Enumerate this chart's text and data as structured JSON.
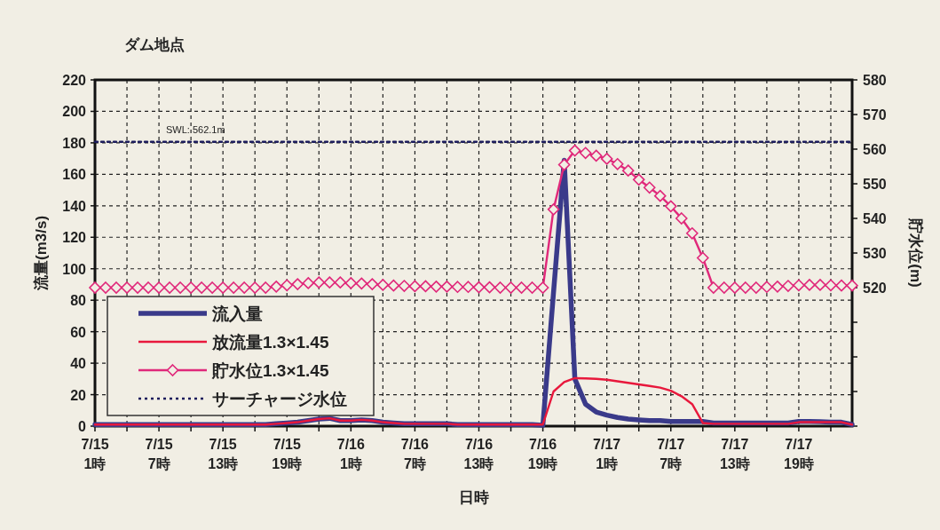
{
  "chart_data": {
    "type": "line",
    "title": "ダム地点",
    "xlabel": "日時",
    "ylabel": "流量(m3/s)",
    "y2label": "貯水位(m)",
    "categories": [
      "7/15\n1時",
      null,
      null,
      null,
      null,
      null,
      "7/15\n7時",
      null,
      null,
      null,
      null,
      null,
      "7/15\n13時",
      null,
      null,
      null,
      null,
      null,
      "7/15\n19時",
      null,
      null,
      null,
      null,
      null,
      "7/16\n1時",
      null,
      null,
      null,
      null,
      null,
      "7/16\n7時",
      null,
      null,
      null,
      null,
      null,
      "7/16\n13時",
      null,
      null,
      null,
      null,
      null,
      "7/16\n19時",
      null,
      null,
      null,
      null,
      null,
      "7/17\n1時",
      null,
      null,
      null,
      null,
      null,
      "7/17\n7時",
      null,
      null,
      null,
      null,
      null,
      "7/17\n13時",
      null,
      null,
      null,
      null,
      null,
      "7/17\n19時",
      null,
      null,
      null,
      null,
      null
    ],
    "ylim": [
      0,
      220
    ],
    "yticks": [
      0,
      20,
      40,
      60,
      80,
      100,
      120,
      140,
      160,
      180,
      200,
      220
    ],
    "y2lim": [
      480,
      580
    ],
    "y2ticks": [
      {
        "value": 480,
        "label": null
      },
      {
        "value": 490,
        "label": null
      },
      {
        "value": 500,
        "label": null
      },
      {
        "value": 510,
        "label": null
      },
      520,
      530,
      540,
      550,
      560,
      570,
      580
    ],
    "grid": true,
    "legend": "bottom left",
    "series": [
      {
        "name": "流入量",
        "color": "#3a3a8a",
        "values": [
          1,
          1,
          1,
          1,
          1,
          1,
          1,
          1,
          1,
          1,
          1,
          1,
          1,
          1,
          1,
          1,
          1,
          1.5,
          2,
          2.5,
          3.5,
          4.5,
          5,
          3.5,
          3.5,
          4,
          3.5,
          2.5,
          2,
          1.5,
          1.5,
          1.5,
          1.5,
          1.5,
          1,
          1,
          1,
          1,
          1,
          1,
          1,
          1,
          0.5,
          85,
          169,
          30,
          14,
          9,
          7,
          5.5,
          4.5,
          4,
          3.5,
          3.5,
          3,
          3,
          3,
          3,
          2,
          2,
          2,
          2,
          2,
          2,
          2,
          2,
          3,
          3,
          2.8,
          2.5,
          2.5,
          1
        ]
      },
      {
        "name": "放流量1.3×1.45",
        "color": "#e8183c",
        "values": [
          1,
          1,
          1,
          1,
          1,
          1,
          1,
          1,
          1,
          1,
          1,
          1,
          1,
          1,
          1,
          1,
          1,
          1.5,
          2,
          2.5,
          3.5,
          4.5,
          5,
          3.5,
          3.5,
          4,
          3.5,
          2.5,
          2,
          1.5,
          1.5,
          1.5,
          1.5,
          1.5,
          1,
          1,
          1,
          1,
          1,
          1,
          1,
          1,
          1,
          22,
          28,
          30.5,
          30.3,
          30,
          29.5,
          28.5,
          27.5,
          26.5,
          25.5,
          24.5,
          22.5,
          19,
          14,
          2,
          1.5,
          1.5,
          1.5,
          1.5,
          1.5,
          1.5,
          1.5,
          1.5,
          2.5,
          2.5,
          2.5,
          2.5,
          2.5,
          1
        ]
      },
      {
        "name": "貯水位1.3×1.45",
        "color": "#e0287a",
        "axis": "y2",
        "marker": "diamond",
        "values": [
          520,
          520,
          520,
          520,
          520,
          520,
          520,
          520,
          520,
          520,
          520,
          520,
          520,
          520,
          520,
          520,
          520,
          520.3,
          520.7,
          521,
          521.3,
          521.5,
          521.5,
          521.5,
          521.3,
          521.2,
          521,
          520.8,
          520.6,
          520.5,
          520.4,
          520.4,
          520.3,
          520.3,
          520.2,
          520.2,
          520.1,
          520.1,
          520,
          520,
          520,
          520,
          520,
          542.6,
          555.5,
          559.6,
          558.9,
          558.1,
          557.2,
          555.7,
          553.8,
          551.2,
          548.9,
          546.5,
          543.5,
          540,
          535.7,
          528.6,
          520,
          520,
          520,
          520,
          520,
          520.2,
          520.3,
          520.5,
          520.7,
          520.8,
          520.8,
          520.7,
          520.6,
          520.6
        ]
      },
      {
        "name": "サーチャージ水位",
        "color": "#1c1c5c",
        "axis": "y2",
        "line_style": "dotted",
        "values": [
          562.1,
          562.1,
          562.1,
          562.1,
          562.1,
          562.1,
          562.1,
          562.1,
          562.1,
          562.1,
          562.1,
          562.1,
          562.1,
          562.1,
          562.1,
          562.1,
          562.1,
          562.1,
          562.1,
          562.1,
          562.1,
          562.1,
          562.1,
          562.1,
          562.1,
          562.1,
          562.1,
          562.1,
          562.1,
          562.1,
          562.1,
          562.1,
          562.1,
          562.1,
          562.1,
          562.1,
          562.1,
          562.1,
          562.1,
          562.1,
          562.1,
          562.1,
          562.1,
          562.1,
          562.1,
          562.1,
          562.1,
          562.1,
          562.1,
          562.1,
          562.1,
          562.1,
          562.1,
          562.1,
          562.1,
          562.1,
          562.1,
          562.1,
          562.1,
          562.1,
          562.1,
          562.1,
          562.1,
          562.1,
          562.1,
          562.1,
          562.1,
          562.1,
          562.1,
          562.1,
          562.1,
          562.1
        ]
      }
    ],
    "annotations": [
      "SWL: 562.1m"
    ]
  }
}
